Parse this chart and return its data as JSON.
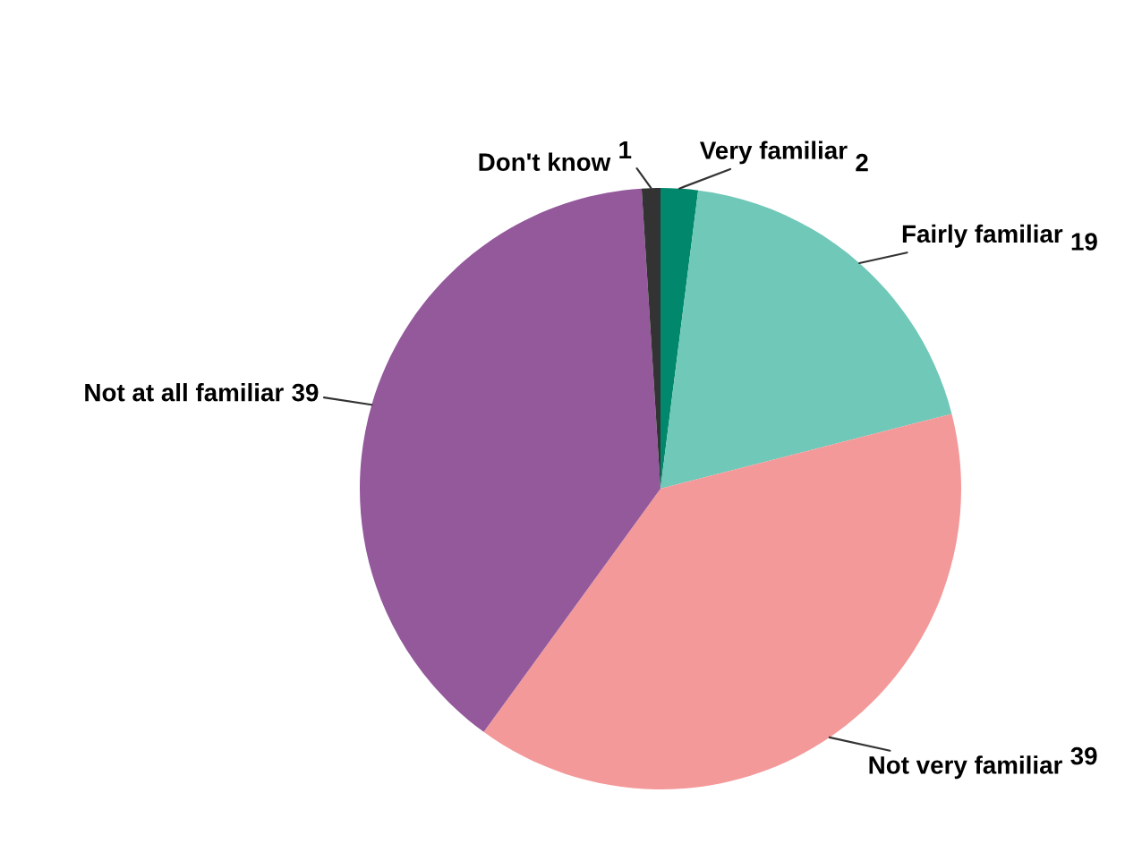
{
  "chart_data": {
    "type": "pie",
    "categories": [
      "Very familiar",
      "Fairly familiar",
      "Not very familiar",
      "Not at all familiar",
      "Don't know"
    ],
    "values": [
      2,
      19,
      39,
      39,
      1
    ],
    "colors": [
      "#00876c",
      "#6fc8b8",
      "#f4999a",
      "#93599b",
      "#333333"
    ],
    "data_labels": true
  }
}
